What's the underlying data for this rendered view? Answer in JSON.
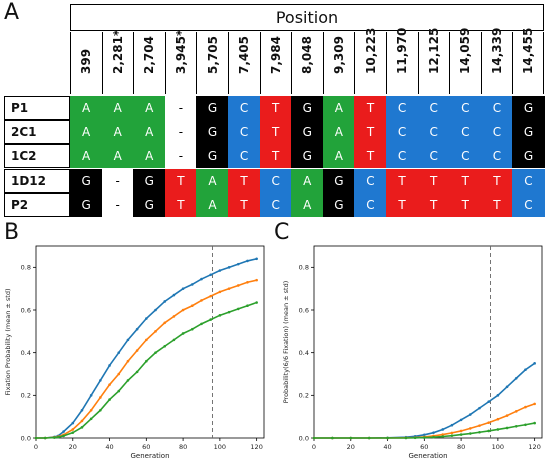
{
  "figure": {
    "letters": {
      "a": "A",
      "b": "B",
      "c": "C"
    },
    "table": {
      "header": "Position",
      "positions": [
        "399",
        "2,281*",
        "2,704",
        "3,945*",
        "5,705",
        "7,405",
        "7,984",
        "8,048",
        "9,309",
        "10,223",
        "11,970",
        "12,125",
        "14,059",
        "14,339",
        "14,455"
      ],
      "rows": [
        {
          "label": "P1",
          "bases": [
            "A",
            "A",
            "A",
            "-",
            "G",
            "C",
            "T",
            "G",
            "A",
            "T",
            "C",
            "C",
            "C",
            "C",
            "G"
          ]
        },
        {
          "label": "2C1",
          "bases": [
            "A",
            "A",
            "A",
            "-",
            "G",
            "C",
            "T",
            "G",
            "A",
            "T",
            "C",
            "C",
            "C",
            "C",
            "G"
          ]
        },
        {
          "label": "1C2",
          "bases": [
            "A",
            "A",
            "A",
            "-",
            "G",
            "C",
            "T",
            "G",
            "A",
            "T",
            "C",
            "C",
            "C",
            "C",
            "G"
          ]
        },
        {
          "label": "1D12",
          "bases": [
            "G",
            "-",
            "G",
            "T",
            "A",
            "T",
            "C",
            "A",
            "G",
            "C",
            "T",
            "T",
            "T",
            "T",
            "C"
          ]
        },
        {
          "label": "P2",
          "bases": [
            "G",
            "-",
            "G",
            "T",
            "A",
            "T",
            "C",
            "A",
            "G",
            "C",
            "T",
            "T",
            "T",
            "T",
            "C"
          ]
        }
      ],
      "colors": {
        "A": "#22a33a",
        "C": "#1f78d0",
        "T": "#ea1c1c",
        "G": "#000000",
        "-": "#ffffff"
      }
    }
  },
  "chart_data": [
    {
      "type": "line",
      "panel": "B",
      "xlabel": "Generation",
      "ylabel": "Fixation Probability (mean ± std)",
      "xlim": [
        0,
        124
      ],
      "ylim": [
        0,
        0.9
      ],
      "xticks": [
        "0",
        "20",
        "40",
        "60",
        "80",
        "100",
        "120"
      ],
      "yticks": [
        "0.0",
        "0.2",
        "0.4",
        "0.6",
        "0.8"
      ],
      "vline": 96,
      "x": [
        0,
        5,
        10,
        12,
        15,
        20,
        25,
        30,
        35,
        40,
        45,
        50,
        55,
        60,
        65,
        70,
        75,
        80,
        85,
        90,
        95,
        100,
        105,
        110,
        115,
        120
      ],
      "series": [
        {
          "color": "#1f77b4",
          "values": [
            0,
            0,
            0.005,
            0.01,
            0.03,
            0.07,
            0.13,
            0.2,
            0.27,
            0.34,
            0.4,
            0.46,
            0.51,
            0.56,
            0.6,
            0.64,
            0.67,
            0.7,
            0.72,
            0.745,
            0.765,
            0.785,
            0.8,
            0.815,
            0.83,
            0.84
          ]
        },
        {
          "color": "#ff7f0e",
          "values": [
            0,
            0,
            0.003,
            0.006,
            0.015,
            0.04,
            0.08,
            0.13,
            0.19,
            0.25,
            0.3,
            0.36,
            0.41,
            0.46,
            0.5,
            0.54,
            0.57,
            0.6,
            0.62,
            0.645,
            0.665,
            0.685,
            0.7,
            0.715,
            0.73,
            0.74
          ]
        },
        {
          "color": "#2ca02c",
          "values": [
            0,
            0,
            0.002,
            0.004,
            0.01,
            0.025,
            0.05,
            0.09,
            0.13,
            0.18,
            0.22,
            0.27,
            0.31,
            0.36,
            0.4,
            0.43,
            0.46,
            0.49,
            0.51,
            0.535,
            0.555,
            0.575,
            0.59,
            0.605,
            0.62,
            0.635
          ]
        }
      ]
    },
    {
      "type": "line",
      "panel": "C",
      "xlabel": "Generation",
      "ylabel": "Probability(6/6 Fixation) (mean ± std)",
      "xlim": [
        0,
        124
      ],
      "ylim": [
        0,
        0.9
      ],
      "xticks": [
        "0",
        "20",
        "40",
        "60",
        "80",
        "100",
        "120"
      ],
      "yticks": [
        "0.0",
        "0.2",
        "0.4",
        "0.6",
        "0.8"
      ],
      "vline": 96,
      "x": [
        0,
        10,
        20,
        30,
        40,
        50,
        55,
        60,
        65,
        70,
        75,
        80,
        85,
        90,
        95,
        100,
        105,
        110,
        115,
        120
      ],
      "series": [
        {
          "color": "#1f77b4",
          "values": [
            0,
            0,
            0,
            0,
            0.001,
            0.004,
            0.008,
            0.015,
            0.025,
            0.04,
            0.06,
            0.085,
            0.11,
            0.14,
            0.17,
            0.2,
            0.24,
            0.28,
            0.32,
            0.35
          ]
        },
        {
          "color": "#ff7f0e",
          "values": [
            0,
            0,
            0,
            0,
            0,
            0.001,
            0.002,
            0.005,
            0.01,
            0.016,
            0.024,
            0.033,
            0.045,
            0.058,
            0.072,
            0.088,
            0.105,
            0.125,
            0.145,
            0.16
          ]
        },
        {
          "color": "#2ca02c",
          "values": [
            0,
            0,
            0,
            0,
            0,
            0,
            0.001,
            0.002,
            0.004,
            0.007,
            0.011,
            0.016,
            0.021,
            0.027,
            0.033,
            0.04,
            0.047,
            0.055,
            0.062,
            0.07
          ]
        }
      ]
    }
  ]
}
